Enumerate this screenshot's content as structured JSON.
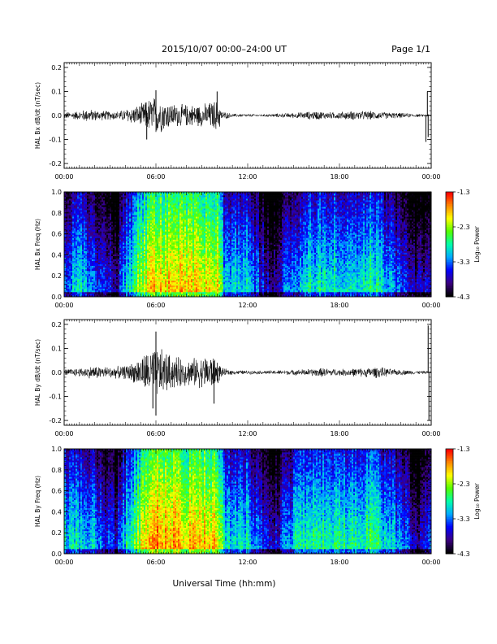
{
  "header": {
    "title": "2015/10/07   00:00–24:00 UT",
    "page": "Page 1/1"
  },
  "xlabel": "Universal Time (hh:mm)",
  "colorbar": {
    "label": "Log₁₀ Power",
    "ticks": [
      "-1.3",
      "-2.3",
      "-3.3",
      "-4.3"
    ]
  },
  "x_ticks": [
    "00:00",
    "06:00",
    "12:00",
    "18:00",
    "00:00"
  ],
  "chart_data": [
    {
      "type": "line",
      "ylabel": "HAL Bx dB/dt (nT/sec)",
      "ylim": [
        -0.22,
        0.22
      ],
      "yticks": [
        -0.2,
        -0.1,
        0.0,
        0.1,
        0.2
      ],
      "ytick_labels": [
        "-0.2",
        "-0.1",
        "0.0",
        "0.1",
        "0.2"
      ],
      "xlim_hours": [
        0,
        24
      ],
      "envelope": [
        {
          "t": 0.0,
          "a": 0.015
        },
        {
          "t": 1.0,
          "a": 0.02
        },
        {
          "t": 1.5,
          "a": 0.03
        },
        {
          "t": 2.0,
          "a": 0.025
        },
        {
          "t": 3.0,
          "a": 0.02
        },
        {
          "t": 3.6,
          "a": 0.02
        },
        {
          "t": 4.0,
          "a": 0.03
        },
        {
          "t": 4.5,
          "a": 0.04
        },
        {
          "t": 5.0,
          "a": 0.05
        },
        {
          "t": 5.5,
          "a": 0.075
        },
        {
          "t": 6.0,
          "a": 0.09
        },
        {
          "t": 6.5,
          "a": 0.07
        },
        {
          "t": 7.0,
          "a": 0.055
        },
        {
          "t": 8.0,
          "a": 0.05
        },
        {
          "t": 9.0,
          "a": 0.05
        },
        {
          "t": 9.5,
          "a": 0.06
        },
        {
          "t": 10.1,
          "a": 0.075
        },
        {
          "t": 10.3,
          "a": 0.02
        },
        {
          "t": 11.0,
          "a": 0.008
        },
        {
          "t": 13.0,
          "a": 0.006
        },
        {
          "t": 15.0,
          "a": 0.012
        },
        {
          "t": 16.5,
          "a": 0.02
        },
        {
          "t": 17.5,
          "a": 0.015
        },
        {
          "t": 19.0,
          "a": 0.02
        },
        {
          "t": 20.0,
          "a": 0.02
        },
        {
          "t": 21.0,
          "a": 0.015
        },
        {
          "t": 22.0,
          "a": 0.012
        },
        {
          "t": 23.3,
          "a": 0.006
        },
        {
          "t": 24.0,
          "a": 0.006
        }
      ],
      "spikes": [
        {
          "t": 6.0,
          "v": 0.105
        },
        {
          "t": 5.4,
          "v": -0.1
        },
        {
          "t": 10.0,
          "v": 0.1
        },
        {
          "t": 23.65,
          "v": -0.11
        },
        {
          "t": 23.75,
          "v": 0.1
        },
        {
          "t": 23.8,
          "v": -0.09
        }
      ]
    },
    {
      "type": "heatmap",
      "ylabel": "HAL Bx Freq (Hz)",
      "ylim": [
        0.0,
        1.0
      ],
      "yticks": [
        0.0,
        0.2,
        0.4,
        0.6,
        0.8,
        1.0
      ],
      "ytick_labels": [
        "0.0",
        "0.2",
        "0.4",
        "0.6",
        "0.8",
        "1.0"
      ],
      "clim": [
        -4.3,
        -1.3
      ],
      "colormap": [
        "#000000",
        "#3c0082",
        "#0000ff",
        "#00aaff",
        "#00ffaa",
        "#55ff00",
        "#ffff00",
        "#ff8800",
        "#ff0000"
      ],
      "activity_profile": [
        {
          "t": 0.0,
          "p": -3.6
        },
        {
          "t": 1.0,
          "p": -3.3
        },
        {
          "t": 2.0,
          "p": -3.6
        },
        {
          "t": 3.4,
          "p": -4.1
        },
        {
          "t": 4.0,
          "p": -3.4
        },
        {
          "t": 5.0,
          "p": -2.6
        },
        {
          "t": 6.0,
          "p": -2.2
        },
        {
          "t": 8.0,
          "p": -2.3
        },
        {
          "t": 10.0,
          "p": -2.3
        },
        {
          "t": 10.5,
          "p": -3.3
        },
        {
          "t": 12.0,
          "p": -3.3
        },
        {
          "t": 13.5,
          "p": -4.2
        },
        {
          "t": 15.0,
          "p": -3.5
        },
        {
          "t": 16.0,
          "p": -3.2
        },
        {
          "t": 18.0,
          "p": -3.1
        },
        {
          "t": 19.0,
          "p": -3.3
        },
        {
          "t": 20.0,
          "p": -3.0
        },
        {
          "t": 21.0,
          "p": -3.4
        },
        {
          "t": 22.0,
          "p": -3.6
        },
        {
          "t": 23.0,
          "p": -4.2
        },
        {
          "t": 24.0,
          "p": -3.8
        }
      ]
    },
    {
      "type": "line",
      "ylabel": "HAL By dB/dt (nT/sec)",
      "ylim": [
        -0.22,
        0.22
      ],
      "yticks": [
        -0.2,
        -0.1,
        0.0,
        0.1,
        0.2
      ],
      "ytick_labels": [
        "-0.2",
        "-0.1",
        "0.0",
        "0.1",
        "0.2"
      ],
      "xlim_hours": [
        0,
        24
      ],
      "envelope": [
        {
          "t": 0.0,
          "a": 0.015
        },
        {
          "t": 1.0,
          "a": 0.02
        },
        {
          "t": 2.0,
          "a": 0.03
        },
        {
          "t": 3.0,
          "a": 0.025
        },
        {
          "t": 4.0,
          "a": 0.03
        },
        {
          "t": 4.5,
          "a": 0.045
        },
        {
          "t": 5.0,
          "a": 0.07
        },
        {
          "t": 5.5,
          "a": 0.1
        },
        {
          "t": 6.0,
          "a": 0.12
        },
        {
          "t": 6.5,
          "a": 0.1
        },
        {
          "t": 7.0,
          "a": 0.08
        },
        {
          "t": 8.0,
          "a": 0.06
        },
        {
          "t": 9.0,
          "a": 0.07
        },
        {
          "t": 9.5,
          "a": 0.085
        },
        {
          "t": 10.0,
          "a": 0.06
        },
        {
          "t": 10.3,
          "a": 0.02
        },
        {
          "t": 11.0,
          "a": 0.01
        },
        {
          "t": 13.0,
          "a": 0.008
        },
        {
          "t": 15.0,
          "a": 0.012
        },
        {
          "t": 17.0,
          "a": 0.02
        },
        {
          "t": 18.0,
          "a": 0.015
        },
        {
          "t": 19.5,
          "a": 0.02
        },
        {
          "t": 20.5,
          "a": 0.025
        },
        {
          "t": 21.5,
          "a": 0.015
        },
        {
          "t": 23.0,
          "a": 0.008
        },
        {
          "t": 24.0,
          "a": 0.006
        }
      ],
      "spikes": [
        {
          "t": 6.0,
          "v": 0.17
        },
        {
          "t": 6.0,
          "v": -0.18
        },
        {
          "t": 5.8,
          "v": -0.15
        },
        {
          "t": 9.8,
          "v": -0.13
        },
        {
          "t": 23.8,
          "v": 0.195
        },
        {
          "t": 23.85,
          "v": -0.2
        }
      ]
    },
    {
      "type": "heatmap",
      "ylabel": "HAL By Freq (Hz)",
      "ylim": [
        0.0,
        1.0
      ],
      "yticks": [
        0.0,
        0.2,
        0.4,
        0.6,
        0.8,
        1.0
      ],
      "ytick_labels": [
        "0.0",
        "0.2",
        "0.4",
        "0.6",
        "0.8",
        "1.0"
      ],
      "clim": [
        -4.3,
        -1.3
      ],
      "colormap": [
        "#000000",
        "#3c0082",
        "#0000ff",
        "#00aaff",
        "#00ffaa",
        "#55ff00",
        "#ffff00",
        "#ff8800",
        "#ff0000"
      ],
      "activity_profile": [
        {
          "t": 0.0,
          "p": -3.3
        },
        {
          "t": 1.0,
          "p": -3.2
        },
        {
          "t": 2.0,
          "p": -3.4
        },
        {
          "t": 3.4,
          "p": -4.0
        },
        {
          "t": 4.0,
          "p": -3.3
        },
        {
          "t": 5.0,
          "p": -2.5
        },
        {
          "t": 6.0,
          "p": -2.0
        },
        {
          "t": 8.0,
          "p": -2.2
        },
        {
          "t": 10.0,
          "p": -2.2
        },
        {
          "t": 10.5,
          "p": -3.2
        },
        {
          "t": 12.0,
          "p": -3.2
        },
        {
          "t": 13.5,
          "p": -4.1
        },
        {
          "t": 15.0,
          "p": -3.3
        },
        {
          "t": 16.0,
          "p": -3.0
        },
        {
          "t": 18.0,
          "p": -3.0
        },
        {
          "t": 19.0,
          "p": -3.2
        },
        {
          "t": 20.0,
          "p": -2.9
        },
        {
          "t": 21.0,
          "p": -3.3
        },
        {
          "t": 22.0,
          "p": -3.5
        },
        {
          "t": 23.0,
          "p": -4.2
        },
        {
          "t": 24.0,
          "p": -3.8
        }
      ]
    }
  ]
}
